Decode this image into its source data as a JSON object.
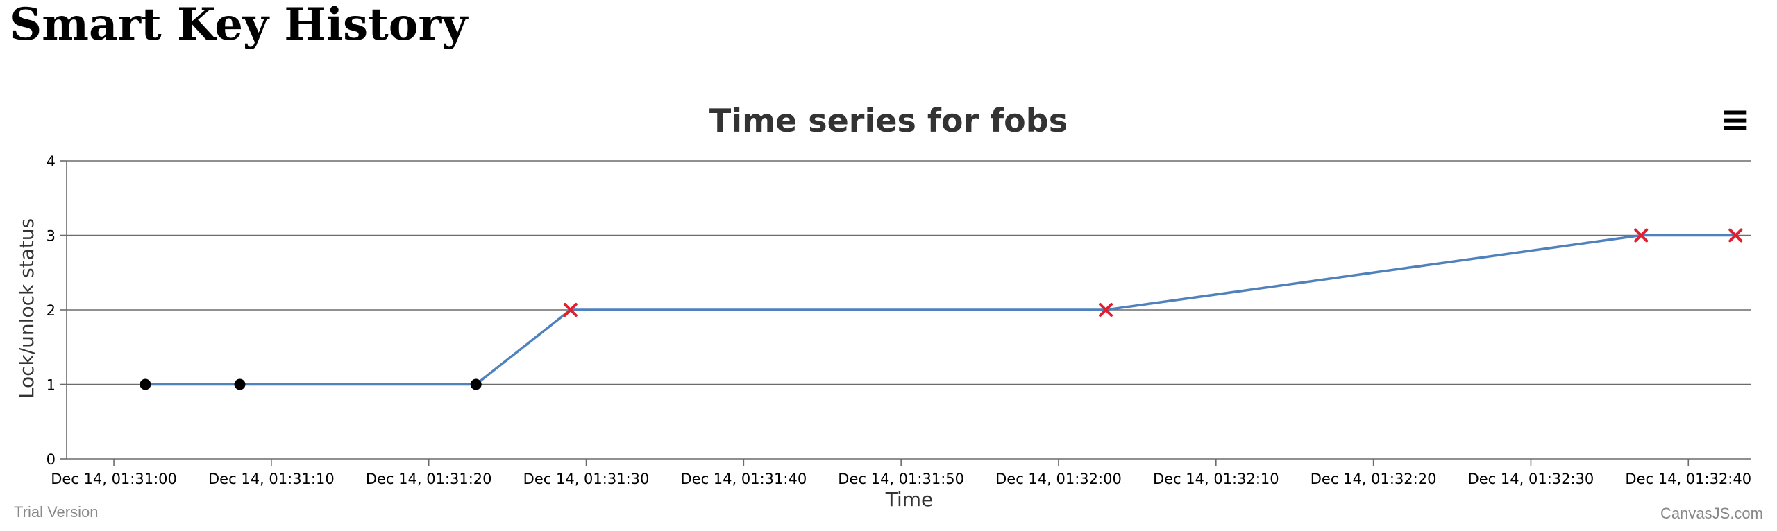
{
  "page": {
    "title": "Smart Key History"
  },
  "chart_menu": {
    "icon": "hamburger-menu-icon",
    "glyph": "≡"
  },
  "footer": {
    "left": "Trial Version",
    "right": "CanvasJS.com"
  },
  "chart_data": {
    "type": "line",
    "title": "Time series for fobs",
    "xlabel": "Time",
    "ylabel": "Lock/unlock status",
    "ylim": [
      0,
      4
    ],
    "yticks": [
      0,
      1,
      2,
      3,
      4
    ],
    "grid": true,
    "line_color": "#4f81bc",
    "xlim_seconds": [
      -3,
      104
    ],
    "xticks": [
      {
        "t": 0,
        "label": "Dec 14, 01:31:00"
      },
      {
        "t": 10,
        "label": "Dec 14, 01:31:10"
      },
      {
        "t": 20,
        "label": "Dec 14, 01:31:20"
      },
      {
        "t": 30,
        "label": "Dec 14, 01:31:30"
      },
      {
        "t": 40,
        "label": "Dec 14, 01:31:40"
      },
      {
        "t": 50,
        "label": "Dec 14, 01:31:50"
      },
      {
        "t": 60,
        "label": "Dec 14, 01:32:00"
      },
      {
        "t": 70,
        "label": "Dec 14, 01:32:10"
      },
      {
        "t": 80,
        "label": "Dec 14, 01:32:20"
      },
      {
        "t": 90,
        "label": "Dec 14, 01:32:30"
      },
      {
        "t": 100,
        "label": "Dec 14, 01:32:40"
      }
    ],
    "points": [
      {
        "t": 2,
        "y": 1,
        "marker": "circle",
        "color": "#000000"
      },
      {
        "t": 8,
        "y": 1,
        "marker": "circle",
        "color": "#000000"
      },
      {
        "t": 23,
        "y": 1,
        "marker": "circle",
        "color": "#000000"
      },
      {
        "t": 29,
        "y": 2,
        "marker": "cross",
        "color": "#e0202f"
      },
      {
        "t": 63,
        "y": 2,
        "marker": "cross",
        "color": "#e0202f"
      },
      {
        "t": 97,
        "y": 3,
        "marker": "cross",
        "color": "#e0202f"
      },
      {
        "t": 103,
        "y": 3,
        "marker": "cross",
        "color": "#e0202f"
      }
    ]
  }
}
